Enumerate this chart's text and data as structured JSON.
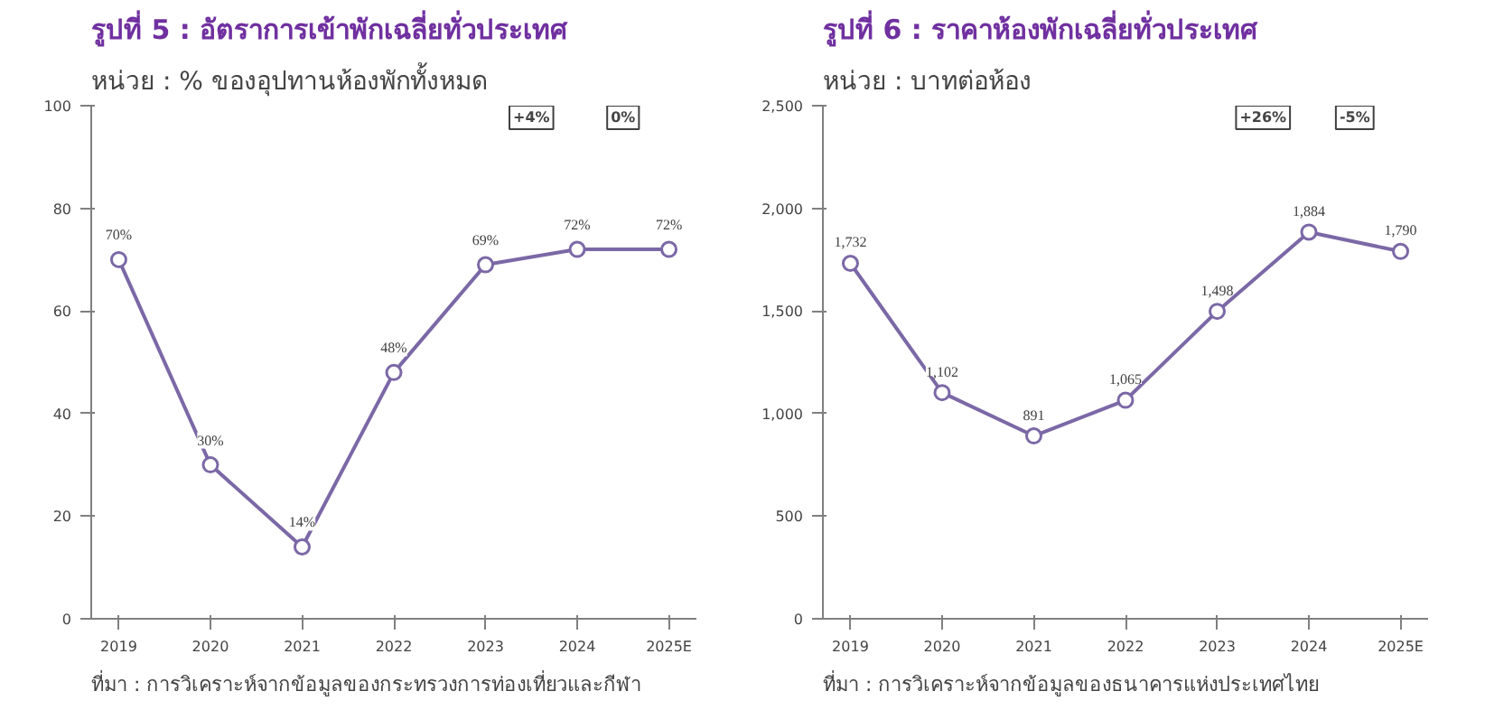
{
  "chart_data": [
    {
      "type": "line",
      "title": "รูปที่ 5 : อัตราการเข้าพักเฉลี่ยทั่วประเทศ",
      "subtitle": "หน่วย : % ของอุปทานห้องพักทั้งหมด",
      "categories": [
        "2019",
        "2020",
        "2021",
        "2022",
        "2023",
        "2024",
        "2025E"
      ],
      "series": [
        {
          "color": "#7b68a6",
          "values": [
            70,
            30,
            14,
            48,
            69,
            72,
            72
          ],
          "value_labels": [
            "70%",
            "30%",
            "14%",
            "48%",
            "69%",
            "72%",
            "72%"
          ]
        }
      ],
      "ylim": [
        0,
        100
      ],
      "yticks": [
        0,
        20,
        40,
        60,
        80,
        100
      ],
      "marker": "circle",
      "grid": false,
      "annotations": [
        "+4%",
        "0%",
        "ที่มา : การวิเคราะห์จากข้อมูลของกระทรวงการท่องเที่ยวและกีฬา"
      ]
    },
    {
      "type": "line",
      "title": "รูปที่ 6 : ราคาห้องพักเฉลี่ยทั่วประเทศ",
      "subtitle": "หน่วย : บาทต่อห้อง",
      "categories": [
        "2019",
        "2020",
        "2021",
        "2022",
        "2023",
        "2024",
        "2025E"
      ],
      "series": [
        {
          "color": "#7b68a6",
          "values": [
            1732,
            1102,
            891,
            1065,
            1498,
            1884,
            1790
          ],
          "value_labels": [
            "1,732",
            "1,102",
            "891",
            "1,065",
            "1,498",
            "1,884",
            "1,790"
          ]
        }
      ],
      "ylim": [
        0,
        2500
      ],
      "yticks": [
        0,
        {
          "value": 500,
          "label": "500"
        },
        {
          "value": 1000,
          "label": "1,000"
        },
        {
          "value": 1500,
          "label": "1,500"
        },
        {
          "value": 2000,
          "label": "2,000"
        },
        {
          "value": 2500,
          "label": "2,500"
        }
      ],
      "marker": "circle",
      "grid": false,
      "annotations": [
        "+26%",
        "-5%",
        "ที่มา : การวิเคราะห์จากข้อมูลของธนาคารแห่งประเทศไทย"
      ]
    }
  ]
}
